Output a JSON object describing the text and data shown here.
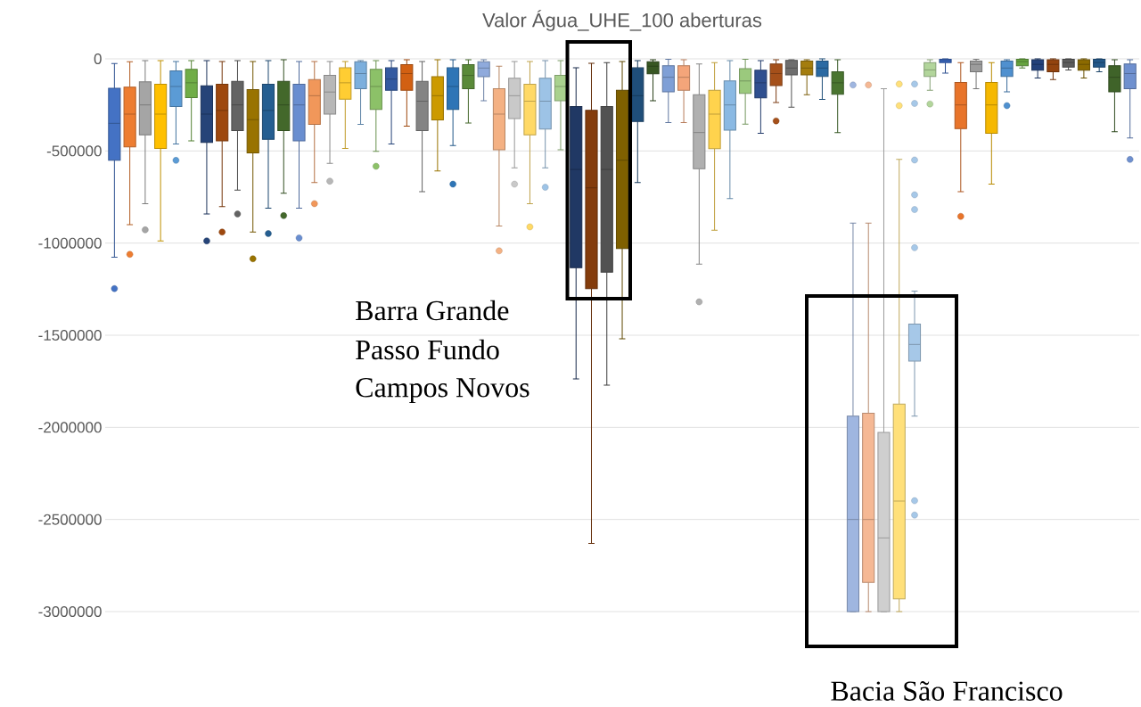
{
  "chart_data": {
    "type": "box",
    "title": "Valor Água_UHE_100 aberturas",
    "categories": [
      null,
      null,
      null,
      null,
      null,
      null,
      null,
      null,
      null,
      null,
      null,
      null,
      null,
      null,
      null,
      null,
      null,
      null,
      null,
      null,
      null,
      null,
      null,
      null,
      null,
      null,
      null,
      null,
      null,
      null,
      null,
      null,
      null,
      null,
      null,
      null,
      null,
      null,
      null,
      null,
      null,
      null,
      null,
      null,
      null,
      null,
      null,
      null,
      null,
      null,
      null,
      null,
      null,
      null,
      null,
      null,
      null,
      null,
      null,
      null,
      null,
      null,
      null,
      null,
      null,
      null,
      null
    ],
    "colors": [
      "#4472c4",
      "#ed7d31",
      "#a5a5a5",
      "#ffc000",
      "#5b9bd5",
      "#70ad47",
      "#264478",
      "#9e480e",
      "#636363",
      "#997300",
      "#255e91",
      "#43682b",
      "#698ed0",
      "#f1975a",
      "#b7b7b7",
      "#ffcd33",
      "#7cafdd",
      "#8cc168",
      "#335aa1",
      "#d26012",
      "#848484",
      "#cc9a00",
      "#2e75b6",
      "#5a8a39",
      "#8faadc",
      "#f4b183",
      "#c9c9c9",
      "#ffd966",
      "#9dc3e6",
      "#a9d18e",
      "#203864",
      "#843c0c",
      "#525252",
      "#7f6000",
      "#1f4e79",
      "#385723",
      "#7f9fd6",
      "#f4a57a",
      "#b0b0b0",
      "#ffd34d",
      "#8ab9e3",
      "#9bc97d",
      "#2f4f8f",
      "#a5501a",
      "#6e6e6e",
      "#a47d0e",
      "#2b6aa3",
      "#4a7530",
      "#9fb6e0",
      "#f5b894",
      "#cfcfcf",
      "#ffe07a",
      "#a6c8e8",
      "#b2d59b",
      "#3a68c0",
      "#e8742a",
      "#9c9c9c",
      "#f5b800",
      "#4f90cf",
      "#66a33f",
      "#22407a",
      "#93430e",
      "#5c5c5c",
      "#8c6a00",
      "#235889",
      "#3f6329",
      "#6f90cf"
    ],
    "boxes": [
      {
        "high": -25000,
        "q3": -160000,
        "median": -350000,
        "q1": -550000,
        "low": -1077000,
        "outliers": [
          -1247000
        ]
      },
      {
        "high": -16000,
        "q3": -154000,
        "median": -300000,
        "q1": -478000,
        "low": -900000,
        "outliers": [
          -1061000
        ]
      },
      {
        "high": -10000,
        "q3": -125000,
        "median": -250000,
        "q1": -413000,
        "low": -786000,
        "outliers": [
          -928000
        ]
      },
      {
        "high": -10000,
        "q3": -138000,
        "median": -300000,
        "q1": -486000,
        "low": -988000
      },
      {
        "high": -15000,
        "q3": -65000,
        "median": -150000,
        "q1": -259000,
        "low": -462000,
        "outliers": [
          -551000
        ]
      },
      {
        "high": -10000,
        "q3": -57000,
        "median": -130000,
        "q1": -211000,
        "low": -445000
      },
      {
        "high": -10000,
        "q3": -146000,
        "median": -300000,
        "q1": -454000,
        "low": -842000,
        "outliers": [
          -988000
        ]
      },
      {
        "high": -15000,
        "q3": -138000,
        "median": -280000,
        "q1": -445000,
        "low": -802000,
        "outliers": [
          -940000
        ]
      },
      {
        "high": -10000,
        "q3": -122000,
        "median": -250000,
        "q1": -389000,
        "low": -713000,
        "outliers": [
          -842000
        ]
      },
      {
        "high": -15000,
        "q3": -167000,
        "median": -330000,
        "q1": -510000,
        "low": -940000,
        "outliers": [
          -1085000
        ]
      },
      {
        "high": -10000,
        "q3": -138000,
        "median": -280000,
        "q1": -437000,
        "low": -810000,
        "outliers": [
          -948000
        ]
      },
      {
        "high": -5000,
        "q3": -122000,
        "median": -250000,
        "q1": -389000,
        "low": -729000,
        "outliers": [
          -851000
        ]
      },
      {
        "high": -15000,
        "q3": -138000,
        "median": -250000,
        "q1": -445000,
        "low": -810000,
        "outliers": [
          -972000
        ]
      },
      {
        "high": -15000,
        "q3": -113000,
        "median": -200000,
        "q1": -356000,
        "low": -672000,
        "outliers": [
          -786000
        ]
      },
      {
        "high": -15000,
        "q3": -89000,
        "median": -180000,
        "q1": -300000,
        "low": -567000,
        "outliers": [
          -664000
        ]
      },
      {
        "high": -15000,
        "q3": -49000,
        "median": -130000,
        "q1": -219000,
        "low": -486000
      },
      {
        "high": -10000,
        "q3": -16000,
        "median": -80000,
        "q1": -162000,
        "low": -356000
      },
      {
        "high": -10000,
        "q3": -57000,
        "median": -150000,
        "q1": -275000,
        "low": -502000,
        "outliers": [
          -583000
        ]
      },
      {
        "high": -10000,
        "q3": -49000,
        "median": -110000,
        "q1": -170000,
        "low": -462000
      },
      {
        "high": -5000,
        "q3": -32000,
        "median": -80000,
        "q1": -170000,
        "low": -365000
      },
      {
        "high": -15000,
        "q3": -122000,
        "median": -230000,
        "q1": -389000,
        "low": -721000
      },
      {
        "high": -5000,
        "q3": -97000,
        "median": -200000,
        "q1": -332000,
        "low": -608000
      },
      {
        "high": -5000,
        "q3": -49000,
        "median": -150000,
        "q1": -275000,
        "low": -470000,
        "outliers": [
          -680000
        ]
      },
      {
        "high": -5000,
        "q3": -32000,
        "median": -90000,
        "q1": -162000,
        "low": -348000
      },
      {
        "high": -5000,
        "q3": -16000,
        "median": -50000,
        "q1": -97000,
        "low": -227000
      },
      {
        "high": -40000,
        "q3": -162000,
        "median": -300000,
        "q1": -494000,
        "low": -907000,
        "outliers": [
          -1042000
        ]
      },
      {
        "high": -15000,
        "q3": -105000,
        "median": -200000,
        "q1": -324000,
        "low": -591000,
        "outliers": [
          -680000
        ]
      },
      {
        "high": -15000,
        "q3": -138000,
        "median": -230000,
        "q1": -413000,
        "low": -786000,
        "outliers": [
          -912000
        ]
      },
      {
        "high": -10000,
        "q3": -105000,
        "median": -230000,
        "q1": -381000,
        "low": -591000,
        "outliers": [
          -697000
        ]
      },
      {
        "high": -10000,
        "q3": -89000,
        "median": -150000,
        "q1": -227000,
        "low": -494000
      },
      {
        "high": -49000,
        "q3": -259000,
        "median": -600000,
        "q1": -1134000,
        "low": -1737000
      },
      {
        "high": -24000,
        "q3": -280000,
        "median": -700000,
        "q1": -1247000,
        "low": -2630000
      },
      {
        "high": -20000,
        "q3": -259000,
        "median": -600000,
        "q1": -1158000,
        "low": -1771000
      },
      {
        "high": -15000,
        "q3": -170000,
        "median": -550000,
        "q1": -1029000,
        "low": -1519000
      },
      {
        "high": -10000,
        "q3": -49000,
        "median": -200000,
        "q1": -340000,
        "low": -672000
      },
      {
        "high": -5000,
        "q3": -16000,
        "median": -40000,
        "q1": -81000,
        "low": -227000
      },
      {
        "high": -3000,
        "q3": -37000,
        "median": -100000,
        "q1": -179000,
        "low": -346000
      },
      {
        "high": -5000,
        "q3": -37000,
        "median": -100000,
        "q1": -170000,
        "low": -346000
      },
      {
        "high": -28000,
        "q3": -195000,
        "median": -400000,
        "q1": -596000,
        "low": -1114000,
        "outliers": [
          -1319000
        ]
      },
      {
        "high": -20000,
        "q3": -170000,
        "median": -300000,
        "q1": -488000,
        "low": -930000
      },
      {
        "high": -10000,
        "q3": -120000,
        "median": -250000,
        "q1": -387000,
        "low": -758000
      },
      {
        "high": -3000,
        "q3": -53000,
        "median": -120000,
        "q1": -187000,
        "low": -354000
      },
      {
        "high": -10000,
        "q3": -62000,
        "median": -130000,
        "q1": -212000,
        "low": -404000
      },
      {
        "high": -5000,
        "q3": -28000,
        "median": -80000,
        "q1": -145000,
        "low": -237000,
        "outliers": [
          -337000
        ]
      },
      {
        "high": -5000,
        "q3": -8000,
        "median": -50000,
        "q1": -87000,
        "low": -262000
      },
      {
        "high": -5000,
        "q3": -12000,
        "median": -50000,
        "q1": -87000,
        "low": -195000
      },
      {
        "high": 0,
        "q3": -12000,
        "median": -50000,
        "q1": -95000,
        "low": -220000
      },
      {
        "high": -5000,
        "q3": -70000,
        "median": -130000,
        "q1": -192000,
        "low": -401000
      },
      {
        "high": -892000,
        "q3": -1939000,
        "median": -2500000,
        "q1": -3000000,
        "low": -3000000,
        "outliers": [
          -142000
        ]
      },
      {
        "high": -892000,
        "q3": -1923000,
        "median": -2500000,
        "q1": -2842000,
        "low": -3000000,
        "outliers": [
          -142000
        ]
      },
      {
        "high": -162000,
        "q3": -2028000,
        "median": -2600000,
        "q1": -3000000,
        "low": -3000000
      },
      {
        "high": -546000,
        "q3": -1874000,
        "median": -2400000,
        "q1": -2931000,
        "low": -3000000,
        "outliers": [
          -137000,
          -254000
        ]
      },
      {
        "high": -1260000,
        "q3": -1439000,
        "median": -1550000,
        "q1": -1640000,
        "low": -1939000,
        "outliers": [
          -137000,
          -242000,
          -549000,
          -738000,
          -818000,
          -1025000,
          -2398000,
          -2476000
        ]
      },
      {
        "high": -5000,
        "q3": -20000,
        "median": -60000,
        "q1": -95000,
        "low": -170000,
        "outliers": [
          -245000
        ]
      },
      {
        "high": 0,
        "q3": -3000,
        "median": -10000,
        "q1": -20000,
        "low": -78000
      },
      {
        "high": -20000,
        "q3": -128000,
        "median": -250000,
        "q1": -379000,
        "low": -721000,
        "outliers": [
          -855000
        ]
      },
      {
        "high": -3000,
        "q3": -12000,
        "median": -30000,
        "q1": -70000,
        "low": -162000
      },
      {
        "high": -20000,
        "q3": -128000,
        "median": -250000,
        "q1": -404000,
        "low": -680000
      },
      {
        "high": -5000,
        "q3": -12000,
        "median": -50000,
        "q1": -95000,
        "low": -179000,
        "outliers": [
          -254000
        ]
      },
      {
        "high": 0,
        "q3": -3000,
        "median": -15000,
        "q1": -37000,
        "low": -50000
      },
      {
        "high": 0,
        "q3": -5000,
        "median": -30000,
        "q1": -62000,
        "low": -104000
      },
      {
        "high": 0,
        "q3": -5000,
        "median": -30000,
        "q1": -70000,
        "low": -112000
      },
      {
        "high": 0,
        "q3": -3000,
        "median": -20000,
        "q1": -45000,
        "low": -60000
      },
      {
        "high": 0,
        "q3": -5000,
        "median": -30000,
        "q1": -62000,
        "low": -104000
      },
      {
        "high": 0,
        "q3": -3000,
        "median": -20000,
        "q1": -45000,
        "low": -70000
      },
      {
        "high": -5000,
        "q3": -37000,
        "median": -100000,
        "q1": -179000,
        "low": -396000
      },
      {
        "high": -5000,
        "q3": -28000,
        "median": -80000,
        "q1": -162000,
        "low": -429000,
        "outliers": [
          -546000
        ]
      }
    ],
    "ylim": [
      -3000000,
      0
    ],
    "yticks": [
      0,
      -500000,
      -1000000,
      -1500000,
      -2000000,
      -2500000,
      -3000000
    ],
    "grid": "y",
    "tick_labels": "y",
    "annotations": [
      "Barra Grande",
      "Passo Fundo",
      "Campos Novos",
      "Bacia São Francisco"
    ]
  }
}
